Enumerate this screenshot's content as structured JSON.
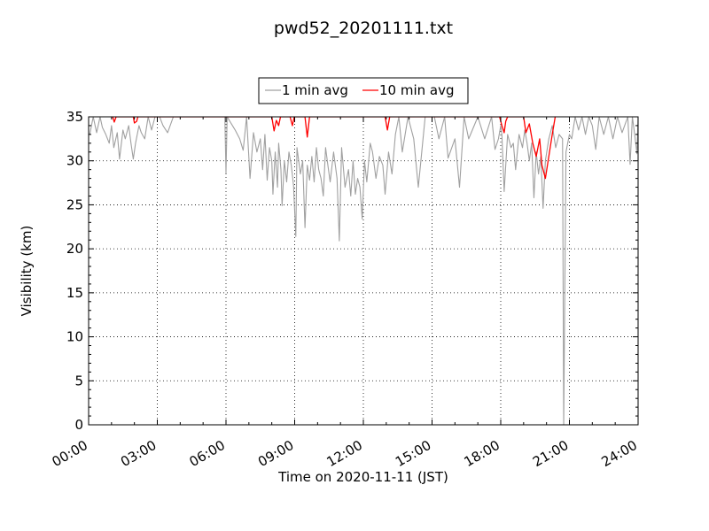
{
  "chart_data": {
    "type": "line",
    "title": "pwd52_20201111.txt",
    "xlabel": "Time on 2020-11-11 (JST)",
    "ylabel": "Visibility (km)",
    "x_unit": "hours of day",
    "xlim": [
      0,
      24
    ],
    "ylim": [
      0,
      35
    ],
    "x_ticks": [
      0,
      3,
      6,
      9,
      12,
      15,
      18,
      21,
      24
    ],
    "x_tick_labels": [
      "00:00",
      "03:00",
      "06:00",
      "09:00",
      "12:00",
      "15:00",
      "18:00",
      "21:00",
      "24:00"
    ],
    "y_ticks": [
      0,
      5,
      10,
      15,
      20,
      25,
      30,
      35
    ],
    "y_tick_labels": [
      "0",
      "5",
      "10",
      "15",
      "20",
      "25",
      "30",
      "35"
    ],
    "grid": true,
    "legend_position": "top-center, above plot",
    "series": [
      {
        "name": "1 min avg",
        "color": "#a0a0a0",
        "points": [
          [
            0.05,
            33.0
          ],
          [
            0.2,
            35
          ],
          [
            0.35,
            33.2
          ],
          [
            0.5,
            35
          ],
          [
            0.6,
            33.8
          ],
          [
            0.75,
            33.0
          ],
          [
            0.9,
            32.0
          ],
          [
            1.0,
            34.0
          ],
          [
            1.1,
            31.5
          ],
          [
            1.25,
            33.2
          ],
          [
            1.35,
            30.2
          ],
          [
            1.5,
            33.5
          ],
          [
            1.6,
            32.5
          ],
          [
            1.75,
            34.0
          ],
          [
            1.85,
            32.0
          ],
          [
            1.95,
            30.2
          ],
          [
            2.05,
            32.0
          ],
          [
            2.2,
            34.0
          ],
          [
            2.3,
            33.2
          ],
          [
            2.45,
            32.5
          ],
          [
            2.6,
            35
          ],
          [
            2.75,
            33.5
          ],
          [
            2.9,
            35
          ],
          [
            3.1,
            35
          ],
          [
            3.25,
            34.0
          ],
          [
            3.45,
            33.2
          ],
          [
            3.7,
            35
          ],
          [
            4.3,
            35
          ],
          [
            5.0,
            35
          ],
          [
            5.6,
            35
          ],
          [
            5.95,
            35
          ],
          [
            6.0,
            28.6
          ],
          [
            6.05,
            35
          ],
          [
            6.4,
            33.5
          ],
          [
            6.6,
            32.5
          ],
          [
            6.75,
            31.2
          ],
          [
            6.9,
            35
          ],
          [
            7.05,
            28.0
          ],
          [
            7.2,
            33.2
          ],
          [
            7.35,
            31.0
          ],
          [
            7.5,
            32.5
          ],
          [
            7.6,
            29.0
          ],
          [
            7.7,
            33.0
          ],
          [
            7.8,
            27.8
          ],
          [
            7.9,
            31.5
          ],
          [
            8.0,
            30.0
          ],
          [
            8.05,
            26.2
          ],
          [
            8.15,
            31.0
          ],
          [
            8.25,
            27.0
          ],
          [
            8.3,
            32.0
          ],
          [
            8.4,
            29.0
          ],
          [
            8.45,
            24.9
          ],
          [
            8.55,
            30.0
          ],
          [
            8.65,
            27.6
          ],
          [
            8.75,
            31.0
          ],
          [
            8.85,
            29.5
          ],
          [
            8.95,
            27.2
          ],
          [
            9.05,
            21.4
          ],
          [
            9.1,
            31.5
          ],
          [
            9.25,
            28.5
          ],
          [
            9.35,
            30.0
          ],
          [
            9.45,
            22.4
          ],
          [
            9.55,
            29.5
          ],
          [
            9.65,
            27.8
          ],
          [
            9.75,
            30.5
          ],
          [
            9.85,
            27.6
          ],
          [
            9.95,
            31.5
          ],
          [
            10.05,
            29.0
          ],
          [
            10.15,
            28.0
          ],
          [
            10.25,
            26.0
          ],
          [
            10.35,
            31.5
          ],
          [
            10.45,
            29.5
          ],
          [
            10.55,
            27.6
          ],
          [
            10.7,
            31.0
          ],
          [
            10.85,
            28.0
          ],
          [
            10.95,
            20.9
          ],
          [
            11.05,
            31.5
          ],
          [
            11.2,
            27.0
          ],
          [
            11.35,
            29.0
          ],
          [
            11.45,
            26.0
          ],
          [
            11.55,
            30.0
          ],
          [
            11.65,
            26.2
          ],
          [
            11.75,
            28.0
          ],
          [
            11.85,
            27.0
          ],
          [
            11.95,
            23.4
          ],
          [
            12.05,
            30.0
          ],
          [
            12.15,
            27.6
          ],
          [
            12.3,
            32.0
          ],
          [
            12.4,
            31.0
          ],
          [
            12.55,
            28.0
          ],
          [
            12.7,
            30.5
          ],
          [
            12.85,
            29.5
          ],
          [
            12.95,
            26.2
          ],
          [
            13.1,
            31.0
          ],
          [
            13.25,
            28.5
          ],
          [
            13.4,
            33.0
          ],
          [
            13.55,
            35
          ],
          [
            13.7,
            31.0
          ],
          [
            13.95,
            35
          ],
          [
            14.2,
            32.5
          ],
          [
            14.4,
            27.0
          ],
          [
            14.7,
            35
          ],
          [
            15.1,
            35
          ],
          [
            15.3,
            32.5
          ],
          [
            15.55,
            35
          ],
          [
            15.7,
            30.3
          ],
          [
            16.0,
            32.5
          ],
          [
            16.2,
            27.0
          ],
          [
            16.4,
            35
          ],
          [
            16.6,
            32.5
          ],
          [
            17.0,
            35
          ],
          [
            17.3,
            32.5
          ],
          [
            17.6,
            35
          ],
          [
            17.75,
            31.3
          ],
          [
            17.9,
            32.5
          ],
          [
            18.0,
            34.0
          ],
          [
            18.05,
            33.0
          ],
          [
            18.15,
            26.5
          ],
          [
            18.3,
            33.0
          ],
          [
            18.45,
            31.5
          ],
          [
            18.55,
            32.0
          ],
          [
            18.65,
            29.0
          ],
          [
            18.8,
            33.0
          ],
          [
            18.95,
            31.5
          ],
          [
            19.05,
            33.5
          ],
          [
            19.15,
            32.0
          ],
          [
            19.25,
            30.0
          ],
          [
            19.35,
            32.0
          ],
          [
            19.45,
            25.8
          ],
          [
            19.55,
            31.0
          ],
          [
            19.65,
            28.5
          ],
          [
            19.75,
            30.5
          ],
          [
            19.85,
            24.6
          ],
          [
            19.95,
            30.0
          ],
          [
            20.1,
            32.5
          ],
          [
            20.25,
            34.0
          ],
          [
            20.4,
            31.5
          ],
          [
            20.55,
            33.0
          ],
          [
            20.7,
            32.5
          ],
          [
            20.75,
            0.0
          ],
          [
            20.85,
            31.0
          ],
          [
            21.0,
            33.0
          ],
          [
            21.1,
            32.5
          ],
          [
            21.25,
            35
          ],
          [
            21.4,
            33.5
          ],
          [
            21.55,
            35
          ],
          [
            21.7,
            33.0
          ],
          [
            21.85,
            35
          ],
          [
            22.0,
            34.0
          ],
          [
            22.15,
            31.3
          ],
          [
            22.3,
            35
          ],
          [
            22.5,
            33.0
          ],
          [
            22.7,
            35
          ],
          [
            22.9,
            32.5
          ],
          [
            23.1,
            35
          ],
          [
            23.3,
            33.2
          ],
          [
            23.55,
            35
          ],
          [
            23.65,
            29.6
          ],
          [
            23.75,
            35
          ],
          [
            23.85,
            33.0
          ],
          [
            23.95,
            30.8
          ],
          [
            24.0,
            35
          ]
        ]
      },
      {
        "name": "10 min avg",
        "color": "#ff0000",
        "points": [
          [
            1.05,
            35
          ],
          [
            1.12,
            34.4
          ],
          [
            1.2,
            35
          ],
          [
            1.95,
            35
          ],
          [
            2.0,
            34.3
          ],
          [
            2.1,
            34.5
          ],
          [
            2.15,
            35
          ],
          [
            8.0,
            35
          ],
          [
            8.1,
            33.4
          ],
          [
            8.2,
            34.6
          ],
          [
            8.3,
            34.0
          ],
          [
            8.38,
            35
          ],
          [
            8.8,
            35
          ],
          [
            8.9,
            34.0
          ],
          [
            8.98,
            35
          ],
          [
            9.45,
            35
          ],
          [
            9.55,
            32.7
          ],
          [
            9.65,
            35
          ],
          [
            12.95,
            35
          ],
          [
            13.05,
            33.5
          ],
          [
            13.15,
            35
          ],
          [
            17.95,
            35
          ],
          [
            18.05,
            34.0
          ],
          [
            18.15,
            33.2
          ],
          [
            18.22,
            34.5
          ],
          [
            18.3,
            35
          ],
          [
            19.0,
            35
          ],
          [
            19.1,
            33.2
          ],
          [
            19.25,
            34.2
          ],
          [
            19.4,
            32.0
          ],
          [
            19.55,
            30.5
          ],
          [
            19.7,
            32.5
          ],
          [
            19.8,
            29.5
          ],
          [
            19.95,
            28.0
          ],
          [
            20.1,
            30.5
          ],
          [
            20.25,
            33.0
          ],
          [
            20.38,
            35
          ]
        ]
      }
    ]
  }
}
